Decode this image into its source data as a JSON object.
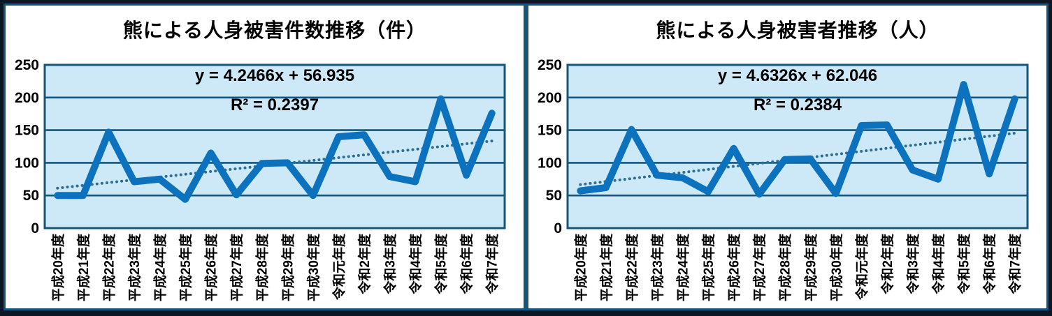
{
  "colors": {
    "outer_border": "#0b1724",
    "panel_border": "#14567c",
    "plot_background": "#cde9f7",
    "gridline": "#14567c",
    "series_line": "#0c72bd",
    "trendline": "#2e6e95",
    "text": "#000000"
  },
  "chart_data": [
    {
      "type": "line",
      "title": "熊による人身被害件数推移（件）",
      "equation": "y = 4.2466x + 56.935",
      "r_squared": "R² = 0.2397",
      "trendline": {
        "slope": 4.2466,
        "intercept": 56.935,
        "style": "dotted"
      },
      "categories": [
        "平成20年度",
        "平成21年度",
        "平成22年度",
        "平成23年度",
        "平成24年度",
        "平成25年度",
        "平成26年度",
        "平成27年度",
        "平成28年度",
        "平成29年度",
        "平成30年度",
        "令和元年度",
        "令和2年度",
        "令和3年度",
        "令和4年度",
        "令和5年度",
        "令和6年度",
        "令和7年度"
      ],
      "values": [
        50,
        50,
        147,
        71,
        75,
        44,
        115,
        51,
        99,
        100,
        50,
        140,
        143,
        79,
        71,
        198,
        81,
        176
      ],
      "ylim": [
        0,
        250
      ],
      "ytick_step": 50,
      "grid": true,
      "legend": false
    },
    {
      "type": "line",
      "title": "熊による人身被害者推移（人）",
      "equation": "y = 4.6326x + 62.046",
      "r_squared": "R² = 0.2384",
      "trendline": {
        "slope": 4.6326,
        "intercept": 62.046,
        "style": "dotted"
      },
      "categories": [
        "平成20年度",
        "平成21年度",
        "平成22年度",
        "平成23年度",
        "平成24年度",
        "平成25年度",
        "平成26年度",
        "平成27年度",
        "平成28年度",
        "平成29年度",
        "平成30年度",
        "令和元年度",
        "令和2年度",
        "令和3年度",
        "令和4年度",
        "令和5年度",
        "令和6年度",
        "令和7年度"
      ],
      "values": [
        57,
        62,
        151,
        81,
        77,
        56,
        122,
        52,
        105,
        106,
        53,
        157,
        158,
        89,
        75,
        220,
        83,
        198
      ],
      "ylim": [
        0,
        250
      ],
      "ytick_step": 50,
      "grid": true,
      "legend": false
    }
  ]
}
